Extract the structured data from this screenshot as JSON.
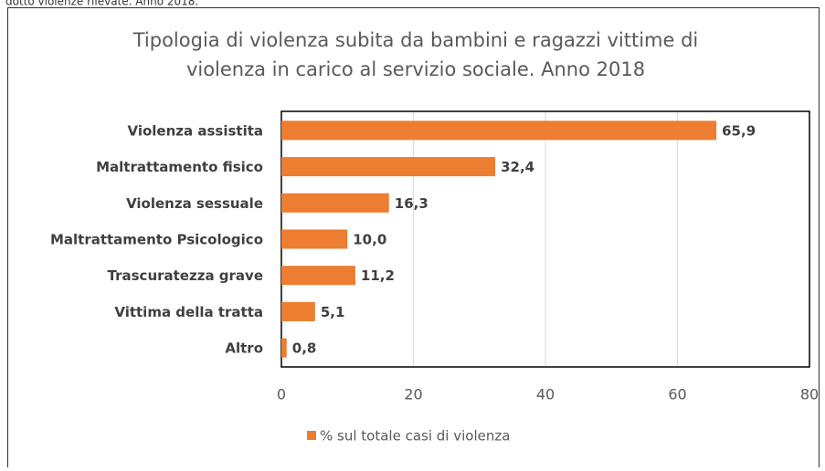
{
  "caption": "dotto violenze rilevate. Anno 2018.",
  "chart_data": {
    "type": "bar",
    "orientation": "horizontal",
    "title": [
      "Tipologia di violenza subita da bambini e ragazzi vittime di",
      "violenza in carico al servizio sociale. Anno 2018"
    ],
    "categories": [
      "Violenza assistita",
      "Maltrattamento fisico",
      "Violenza sessuale",
      "Maltrattamento Psicologico",
      "Trascuratezza grave",
      "Vittima della tratta",
      "Altro"
    ],
    "series": [
      {
        "name": "% sul totale casi di violenza",
        "color": "#ed7d31",
        "values": [
          65.9,
          32.4,
          16.3,
          10.0,
          11.2,
          5.1,
          0.8
        ],
        "value_labels": [
          "65,9",
          "32,4",
          "16,3",
          "10,0",
          "11,2",
          "5,1",
          "0,8"
        ]
      }
    ],
    "xlim": [
      0,
      80
    ],
    "xticks": [
      0,
      20,
      40,
      60,
      80
    ],
    "grid": true,
    "legend": "bottom"
  }
}
